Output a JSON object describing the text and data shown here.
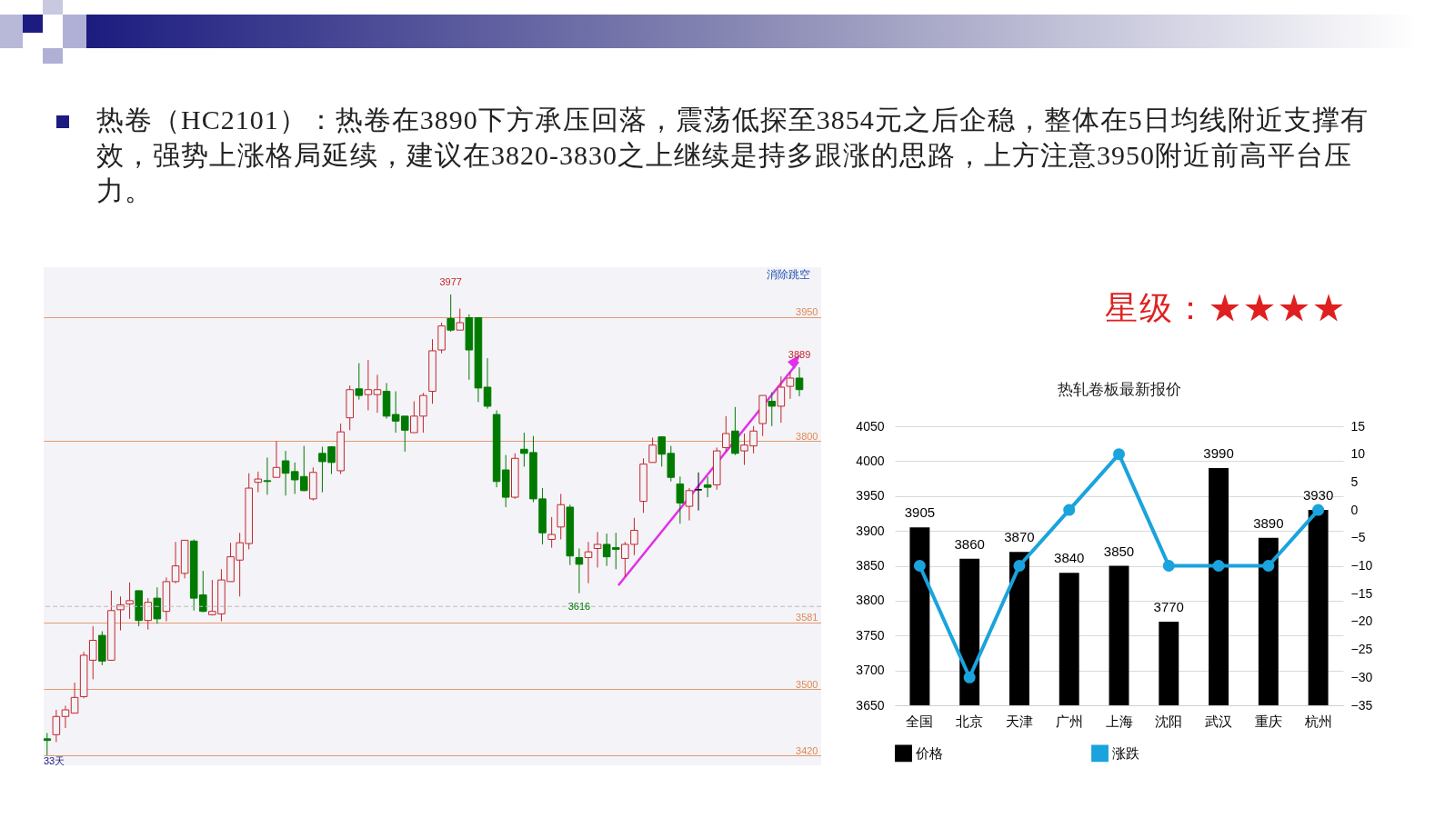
{
  "chart_data": [
    {
      "type": "candlestick",
      "tick_labels": "y",
      "grid": "y",
      "ylim": [
        3408,
        4010
      ],
      "yticks": [
        3420,
        3500,
        3581,
        3800,
        3950
      ],
      "annotations": [
        "热卷（HC2101）：热卷在3890下方承压回落，震荡低探至3854元之后企稳，整体在5日均线附近支撑有效，强势上涨格局延续，建议在3820-3830之上继续是持多跟涨的思路，上方注意3950附近前高平台压力。",
        "消除跳空",
        "33天",
        {
          "text": "3977",
          "y": 3977
        },
        {
          "text": "3616",
          "y": 3616
        },
        {
          "text": "3889",
          "y": 3889
        }
      ],
      "ref_lines": [
        {
          "axis": "y",
          "value": 3600,
          "color": "#bbbbbb",
          "line_style": "dashed"
        }
      ],
      "categories": [
        null,
        null,
        null,
        null,
        null,
        null,
        null,
        null,
        null,
        null,
        null,
        null,
        null,
        null,
        null,
        null,
        null,
        null,
        null,
        null,
        null,
        null,
        null,
        null,
        null,
        null,
        null,
        null,
        null,
        null,
        null,
        null,
        null,
        null,
        null,
        null,
        null,
        null,
        null,
        null,
        null,
        null,
        null,
        null,
        null,
        null,
        null,
        null,
        null,
        null,
        null,
        null,
        null,
        null,
        null,
        null,
        null,
        null,
        null,
        null,
        null,
        null,
        null,
        null,
        null,
        null,
        null,
        null,
        null,
        null,
        null,
        null,
        null,
        null,
        null,
        null,
        null,
        null,
        null,
        null,
        null,
        null,
        null
      ],
      "ohlc": [
        [
          3440,
          3447,
          3420,
          3438
        ],
        [
          3445,
          3475,
          3436,
          3467
        ],
        [
          3467,
          3480,
          3453,
          3475
        ],
        [
          3471,
          3508,
          3471,
          3490
        ],
        [
          3491,
          3545,
          3489,
          3541
        ],
        [
          3535,
          3576,
          3512,
          3559
        ],
        [
          3565,
          3570,
          3529,
          3534
        ],
        [
          3535,
          3619,
          3535,
          3595
        ],
        [
          3596,
          3612,
          3571,
          3602
        ],
        [
          3603,
          3629,
          3585,
          3607
        ],
        [
          3619,
          3619,
          3576,
          3583
        ],
        [
          3583,
          3610,
          3572,
          3605
        ],
        [
          3610,
          3623,
          3579,
          3585
        ],
        [
          3594,
          3635,
          3582,
          3630
        ],
        [
          3630,
          3678,
          3628,
          3649
        ],
        [
          3640,
          3680,
          3634,
          3680
        ],
        [
          3679,
          3681,
          3595,
          3610
        ],
        [
          3614,
          3643,
          3593,
          3594
        ],
        [
          3590,
          3632,
          3589,
          3594
        ],
        [
          3591,
          3645,
          3582,
          3632
        ],
        [
          3630,
          3677,
          3630,
          3660
        ],
        [
          3656,
          3689,
          3612,
          3677
        ],
        [
          3676,
          3761,
          3669,
          3743
        ],
        [
          3750,
          3763,
          3738,
          3754
        ],
        [
          3752,
          3780,
          3735,
          3751
        ],
        [
          3756,
          3800,
          3756,
          3768
        ],
        [
          3776,
          3788,
          3734,
          3761
        ],
        [
          3763,
          3774,
          3736,
          3753
        ],
        [
          3757,
          3794,
          3739,
          3740
        ],
        [
          3730,
          3768,
          3728,
          3762
        ],
        [
          3785,
          3793,
          3738,
          3775
        ],
        [
          3793,
          3793,
          3760,
          3774
        ],
        [
          3764,
          3821,
          3760,
          3811
        ],
        [
          3828,
          3867,
          3813,
          3862
        ],
        [
          3863,
          3894,
          3850,
          3855
        ],
        [
          3856,
          3898,
          3837,
          3862
        ],
        [
          3856,
          3880,
          3834,
          3862
        ],
        [
          3860,
          3870,
          3827,
          3830
        ],
        [
          3832,
          3860,
          3810,
          3824
        ],
        [
          3830,
          3830,
          3787,
          3813
        ],
        [
          3810,
          3848,
          3810,
          3830
        ],
        [
          3830,
          3858,
          3810,
          3855
        ],
        [
          3860,
          3923,
          3845,
          3909
        ],
        [
          3910,
          3943,
          3906,
          3939
        ],
        [
          3948,
          3977,
          3932,
          3934
        ],
        [
          3934,
          3960,
          3934,
          3943
        ],
        [
          3949,
          3953,
          3874,
          3910
        ],
        [
          3949,
          3949,
          3847,
          3864
        ],
        [
          3865,
          3900,
          3839,
          3842
        ],
        [
          3832,
          3837,
          3744,
          3751
        ],
        [
          3765,
          3783,
          3720,
          3732
        ],
        [
          3732,
          3785,
          3730,
          3779
        ],
        [
          3790,
          3810,
          3769,
          3785
        ],
        [
          3786,
          3806,
          3726,
          3730
        ],
        [
          3730,
          3743,
          3675,
          3689
        ],
        [
          3681,
          3708,
          3671,
          3687
        ],
        [
          3696,
          3736,
          3681,
          3723
        ],
        [
          3720,
          3723,
          3650,
          3661
        ],
        [
          3659,
          3670,
          3616,
          3651
        ],
        [
          3659,
          3678,
          3628,
          3666
        ],
        [
          3670,
          3690,
          3647,
          3675
        ],
        [
          3675,
          3688,
          3649,
          3660
        ],
        [
          3671,
          3689,
          3645,
          3669
        ],
        [
          3658,
          3678,
          3636,
          3675
        ],
        [
          3675,
          3707,
          3662,
          3692
        ],
        [
          3727,
          3779,
          3713,
          3772
        ],
        [
          3774,
          3804,
          3774,
          3795
        ],
        [
          3805,
          3805,
          3769,
          3784
        ],
        [
          3785,
          3794,
          3751,
          3756
        ],
        [
          3748,
          3757,
          3700,
          3725
        ],
        [
          3721,
          3743,
          3704,
          3740
        ],
        [
          3741,
          3762,
          3716,
          3741
        ],
        [
          3747,
          3757,
          3732,
          3744
        ],
        [
          3747,
          3792,
          3741,
          3788
        ],
        [
          3792,
          3830,
          3787,
          3809
        ],
        [
          3812,
          3841,
          3783,
          3785
        ],
        [
          3788,
          3809,
          3771,
          3795
        ],
        [
          3794,
          3818,
          3785,
          3812
        ],
        [
          3821,
          3855,
          3806,
          3855
        ],
        [
          3848,
          3859,
          3818,
          3842
        ],
        [
          3842,
          3878,
          3822,
          3865
        ],
        [
          3866,
          3883,
          3851,
          3876
        ],
        [
          3876,
          3889,
          3854,
          3862
        ]
      ],
      "colors": [
        "#007a00",
        "#c0282d",
        "#c0282d",
        "#c0282d",
        "#c0282d",
        "#c0282d",
        "#007a00",
        "#c0282d",
        "#c0282d",
        "#c0282d",
        "#007a00",
        "#c0282d",
        "#007a00",
        "#c0282d",
        "#c0282d",
        "#c0282d",
        "#007a00",
        "#007a00",
        "#c0282d",
        "#c0282d",
        "#c0282d",
        "#c0282d",
        "#c0282d",
        "#c0282d",
        "#007a00",
        "#c0282d",
        "#007a00",
        "#007a00",
        "#007a00",
        "#c0282d",
        "#007a00",
        "#007a00",
        "#c0282d",
        "#c0282d",
        "#007a00",
        "#c0282d",
        "#c0282d",
        "#007a00",
        "#007a00",
        "#007a00",
        "#c0282d",
        "#c0282d",
        "#c0282d",
        "#c0282d",
        "#007a00",
        "#c0282d",
        "#007a00",
        "#007a00",
        "#007a00",
        "#007a00",
        "#007a00",
        "#c0282d",
        "#007a00",
        "#007a00",
        "#007a00",
        "#c0282d",
        "#c0282d",
        "#007a00",
        "#007a00",
        "#c0282d",
        "#c0282d",
        "#007a00",
        "#007a00",
        "#c0282d",
        "#c0282d",
        "#c0282d",
        "#c0282d",
        "#007a00",
        "#007a00",
        "#007a00",
        "#c0282d",
        "#000000",
        "#007a00",
        "#c0282d",
        "#c0282d",
        "#007a00",
        "#c0282d",
        "#c0282d",
        "#c0282d",
        "#007a00",
        "#c0282d",
        "#c0282d",
        "#007a00"
      ]
    },
    {
      "type": "bar",
      "title": "热轧卷板最新报价",
      "categories": [
        "全国",
        "北京",
        "天津",
        "广州",
        "上海",
        "沈阳",
        "武汉",
        "重庆",
        "杭州"
      ],
      "series": [
        {
          "name": "价格",
          "type": "bar",
          "color": "#000000",
          "values": [
            3905,
            3860,
            3870,
            3840,
            3850,
            3770,
            3990,
            3890,
            3930
          ],
          "value_labels": [
            "3905",
            "3860",
            "3870",
            "3840",
            "3850",
            "3770",
            "3990",
            "3890",
            "3930"
          ]
        },
        {
          "name": "涨跌",
          "type": "line",
          "axis": "y2",
          "color": "#1aa3dd",
          "values": [
            -10,
            -30,
            -10,
            0,
            10,
            -10,
            -10,
            -10,
            0
          ]
        }
      ],
      "ylim": [
        3650,
        4050
      ],
      "yticks": [
        3650,
        3700,
        3750,
        3800,
        3850,
        3900,
        3950,
        4000,
        4050
      ],
      "y2lim": [
        -35,
        15
      ],
      "y2ticks": [
        -35,
        -30,
        -25,
        -20,
        -15,
        -10,
        -5,
        0,
        5,
        10,
        15
      ],
      "grid": "y",
      "legend": "bottom",
      "marker": "circle",
      "annotations": [
        "星级：★★★★"
      ]
    }
  ]
}
